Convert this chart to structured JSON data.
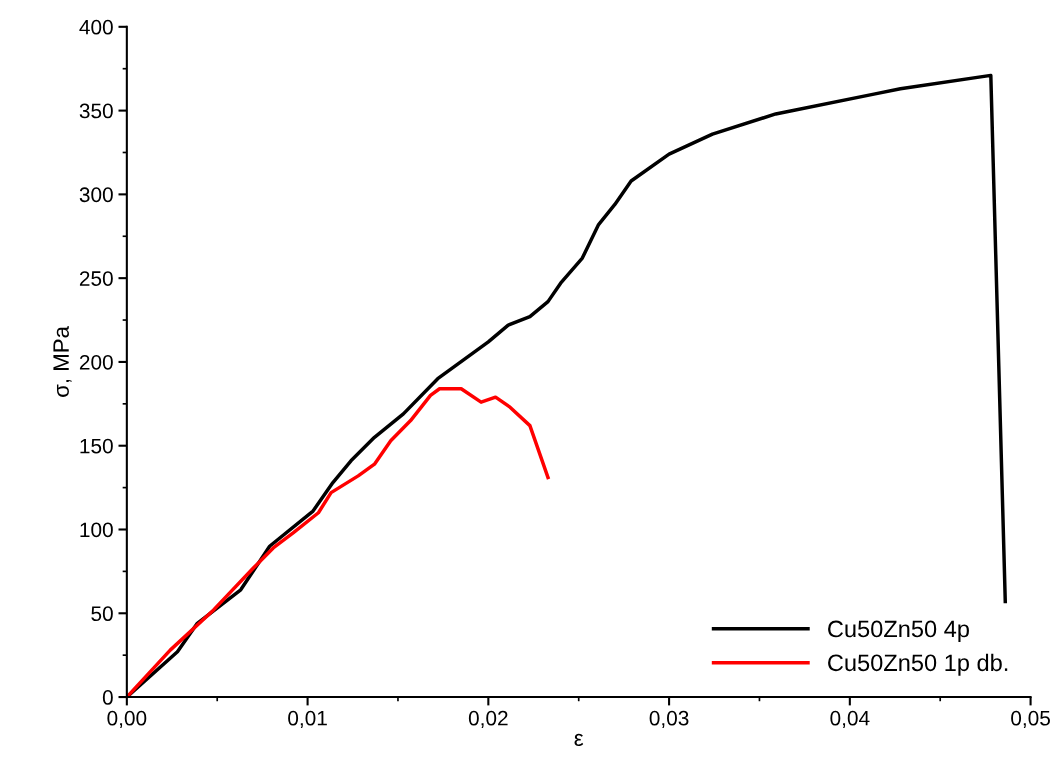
{
  "chart_data": {
    "type": "line",
    "xlabel": "ε",
    "ylabel": "σ, MPa",
    "xlim": [
      0,
      0.05
    ],
    "ylim": [
      0,
      400
    ],
    "xticks": [
      {
        "value": 0,
        "label": "0,00"
      },
      {
        "value": 0.01,
        "label": "0,01"
      },
      {
        "value": 0.02,
        "label": "0,02"
      },
      {
        "value": 0.03,
        "label": "0,03"
      },
      {
        "value": 0.04,
        "label": "0,04"
      },
      {
        "value": 0.05,
        "label": "0,05"
      }
    ],
    "yticks": [
      0,
      50,
      100,
      150,
      200,
      250,
      300,
      350,
      400
    ],
    "grid": false,
    "legend": "bottom right",
    "marker": "none",
    "line_style": "solid",
    "series": [
      {
        "name": "Cu50Zn50 4p",
        "color": "#000000",
        "x": [
          0,
          0.0028,
          0.0039,
          0.0063,
          0.0079,
          0.0103,
          0.0114,
          0.0124,
          0.0137,
          0.0153,
          0.0172,
          0.02,
          0.0211,
          0.0223,
          0.0233,
          0.024,
          0.0252,
          0.0261,
          0.027,
          0.0279,
          0.03,
          0.0324,
          0.0359,
          0.0414,
          0.0428,
          0.0478,
          0.0486
        ],
        "values": [
          0,
          27,
          44,
          64,
          90,
          111,
          128,
          141,
          155,
          169,
          190,
          212,
          222,
          227,
          236,
          247,
          262,
          282,
          294,
          308,
          324,
          336,
          348,
          360,
          363,
          371,
          57
        ]
      },
      {
        "name": "Cu50Zn50 1p db.",
        "color": "#ff0000",
        "x": [
          0,
          0.0024,
          0.0048,
          0.007,
          0.0081,
          0.0092,
          0.0106,
          0.0113,
          0.0128,
          0.0137,
          0.0146,
          0.0157,
          0.0168,
          0.0173,
          0.0185,
          0.0196,
          0.0204,
          0.0212,
          0.0223,
          0.0233
        ],
        "values": [
          0,
          28,
          52,
          77,
          89,
          98,
          110,
          122,
          132,
          139,
          153,
          165,
          180,
          184,
          184,
          176,
          179,
          173,
          162,
          131
        ]
      }
    ]
  }
}
